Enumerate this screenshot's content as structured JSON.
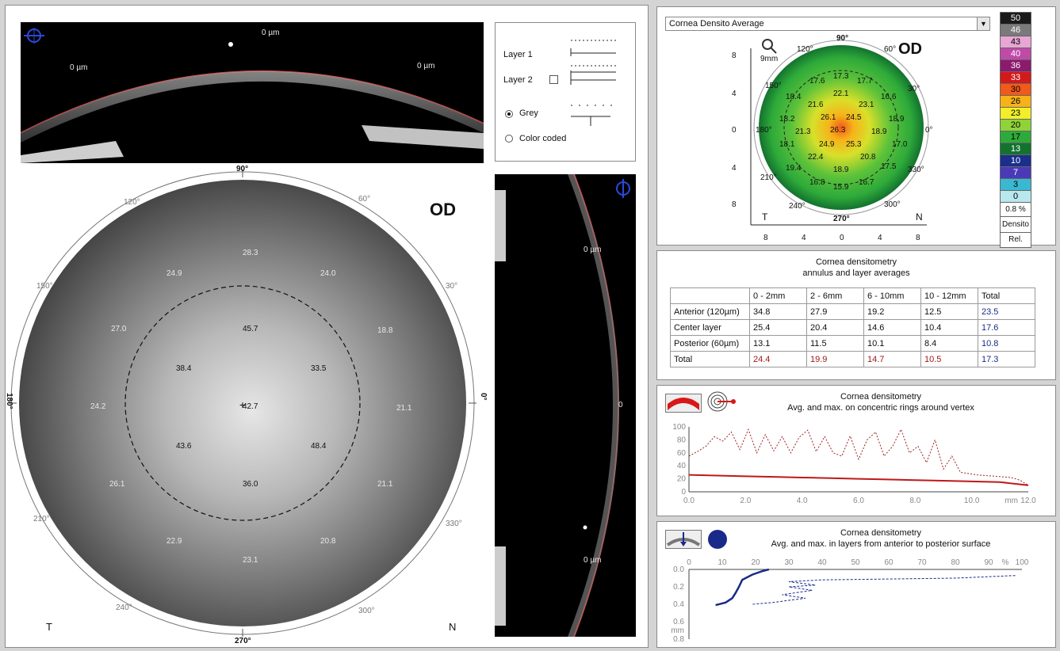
{
  "left": {
    "top_scan": {
      "labels": [
        "0 µm",
        "0 µm",
        "0 µm"
      ]
    },
    "layer_box": {
      "layer1": "Layer 1",
      "layer2": "Layer 2",
      "grey": "Grey",
      "color_coded": "Color coded",
      "grey_selected": true
    },
    "densito_map": {
      "eye": "OD",
      "angle_labels": [
        "90°",
        "60°",
        "30°",
        "0°",
        "330°",
        "300°",
        "270°",
        "240°",
        "210°",
        "180°",
        "150°",
        "120°"
      ],
      "values": {
        "outer_top": "28.3",
        "outer_tl": "24.9",
        "outer_tr": "24.0",
        "outer_l": "27.0",
        "outer_r": "18.8",
        "outer_ml": "24.2",
        "outer_mr": "21.1",
        "outer_bl1": "26.1",
        "outer_br1": "21.1",
        "outer_bl2": "22.9",
        "outer_br2": "20.8",
        "outer_bottom": "23.1",
        "inner_top": "45.7",
        "inner_tl": "38.4",
        "inner_tr": "33.5",
        "center": "42.7",
        "inner_bl": "43.6",
        "inner_br": "48.4",
        "inner_bottom": "36.0"
      },
      "t_label": "T",
      "n_label": "N"
    },
    "side_scan": {
      "labels": [
        "0 µm",
        "0",
        "0 µm"
      ]
    }
  },
  "right": {
    "map_panel": {
      "dropdown_value": "Cornea Densito Average",
      "eye": "OD",
      "zoom_label": "9mm",
      "angle_labels": [
        "90°",
        "60°",
        "30°",
        "0°",
        "330°",
        "300°",
        "270°",
        "240°",
        "210°",
        "180°",
        "150°",
        "120°"
      ],
      "axis_ticks_y": [
        "8",
        "4",
        "0",
        "4",
        "8"
      ],
      "axis_ticks_x": [
        "8",
        "4",
        "0",
        "4",
        "8"
      ],
      "t_label": "T",
      "n_label": "N",
      "map_values": [
        "17.3",
        "17.6",
        "17.7",
        "18.4",
        "22.1",
        "16.6",
        "21.6",
        "23.1",
        "18.2",
        "26.1",
        "24.5",
        "18.9",
        "21.3",
        "26.3",
        "18.9",
        "18.1",
        "24.9",
        "25.3",
        "17.0",
        "22.4",
        "20.8",
        "19.4",
        "17.5",
        "18.9",
        "16.8",
        "16.7",
        "15.9"
      ],
      "legend": [
        {
          "label": "50",
          "color": "#1a1a1a",
          "text": "#ffffff"
        },
        {
          "label": "46",
          "color": "#7a7a7a",
          "text": "#ffffff"
        },
        {
          "label": "43",
          "color": "#e7a6d3",
          "text": "#000000"
        },
        {
          "label": "40",
          "color": "#c04aa8",
          "text": "#ffffff"
        },
        {
          "label": "36",
          "color": "#8c1a6e",
          "text": "#ffffff"
        },
        {
          "label": "33",
          "color": "#d21a1a",
          "text": "#ffffff"
        },
        {
          "label": "30",
          "color": "#f05a1a",
          "text": "#000000"
        },
        {
          "label": "26",
          "color": "#f7b21a",
          "text": "#000000"
        },
        {
          "label": "23",
          "color": "#f2ee2a",
          "text": "#000000"
        },
        {
          "label": "20",
          "color": "#8fd23a",
          "text": "#000000"
        },
        {
          "label": "17",
          "color": "#2eaa3a",
          "text": "#000000"
        },
        {
          "label": "13",
          "color": "#13722e",
          "text": "#ffffff"
        },
        {
          "label": "10",
          "color": "#1a2e8a",
          "text": "#ffffff"
        },
        {
          "label": "7",
          "color": "#4a3ab8",
          "text": "#ffffff"
        },
        {
          "label": "3",
          "color": "#3ab8d2",
          "text": "#000000"
        },
        {
          "label": "0",
          "color": "#b8e8ee",
          "text": "#000000"
        }
      ],
      "legend_percent": "0.8 %",
      "legend_mode": "Densito",
      "legend_rel": "Rel."
    },
    "table_panel": {
      "title1": "Cornea densitometry",
      "title2": "annulus and layer averages",
      "headers": [
        "",
        "0 - 2mm",
        "2 - 6mm",
        "6 - 10mm",
        "10 - 12mm",
        "Total"
      ],
      "rows": [
        {
          "label": "Anterior (120µm)",
          "values": [
            "34.8",
            "27.9",
            "19.2",
            "12.5"
          ],
          "total": "23.5"
        },
        {
          "label": "Center layer",
          "values": [
            "25.4",
            "20.4",
            "14.6",
            "10.4"
          ],
          "total": "17.6"
        },
        {
          "label": "Posterior (60µm)",
          "values": [
            "13.1",
            "11.5",
            "10.1",
            "8.4"
          ],
          "total": "10.8"
        },
        {
          "label": "Total",
          "values": [
            "24.4",
            "19.9",
            "14.7",
            "10.5"
          ],
          "total": "17.3"
        }
      ]
    },
    "rings_panel": {
      "title1": "Cornea densitometry",
      "title2": "Avg. and max. on concentric rings around vertex",
      "y_ticks": [
        "100",
        "80",
        "60",
        "40",
        "20",
        "0"
      ],
      "x_ticks": [
        "0.0",
        "2.0",
        "4.0",
        "6.0",
        "8.0",
        "10.0",
        "12.0"
      ],
      "x_unit": "mm"
    },
    "layers_panel": {
      "title1": "Cornea densitometry",
      "title2": "Avg. and max. in layers from anterior to posterior surface",
      "x_ticks": [
        "0",
        "10",
        "20",
        "30",
        "40",
        "50",
        "60",
        "70",
        "80",
        "90",
        "100"
      ],
      "x_unit": "%",
      "y_ticks": [
        "0.0",
        "0.2",
        "0.4",
        "0.6",
        "0.8"
      ],
      "y_unit": "mm"
    }
  },
  "chart_data": [
    {
      "type": "line",
      "title": "Cornea densitometry",
      "subtitle": "Avg. and max. on concentric rings around vertex",
      "xlabel": "mm",
      "ylabel": "",
      "xlim": [
        0,
        12
      ],
      "ylim": [
        0,
        100
      ],
      "series": [
        {
          "name": "",
          "style": "dashed",
          "color": "#a02020",
          "x": [
            0.0,
            0.3,
            0.6,
            0.9,
            1.2,
            1.5,
            1.8,
            2.1,
            2.4,
            2.7,
            3.0,
            3.3,
            3.6,
            3.9,
            4.2,
            4.5,
            4.8,
            5.1,
            5.4,
            5.7,
            6.0,
            6.3,
            6.6,
            6.9,
            7.2,
            7.5,
            7.8,
            8.1,
            8.4,
            8.7,
            9.0,
            9.3,
            9.6,
            9.9,
            10.2,
            10.5,
            10.8,
            11.1,
            11.4,
            11.7,
            12.0
          ],
          "y": [
            55,
            62,
            70,
            85,
            78,
            92,
            65,
            96,
            60,
            88,
            63,
            85,
            60,
            84,
            95,
            62,
            85,
            60,
            55,
            86,
            50,
            80,
            92,
            55,
            70,
            96,
            60,
            70,
            45,
            80,
            35,
            55,
            30,
            28,
            26,
            25,
            24,
            23,
            22,
            18,
            10
          ]
        },
        {
          "name": "",
          "style": "solid",
          "color": "#c01818",
          "x": [
            0,
            1,
            2,
            3,
            4,
            5,
            6,
            7,
            8,
            9,
            10,
            11,
            12
          ],
          "y": [
            26,
            25,
            24,
            23,
            22,
            21,
            20,
            19,
            18,
            17,
            16,
            15,
            10
          ]
        }
      ]
    },
    {
      "type": "line",
      "title": "Cornea densitometry",
      "subtitle": "Avg. and max. in layers from anterior to posterior surface",
      "xlabel": "%",
      "ylabel": "mm",
      "xlim": [
        0,
        100
      ],
      "ylim": [
        0.8,
        0.0
      ],
      "series": [
        {
          "name": "",
          "style": "solid",
          "color": "#1a2a8a",
          "x": [
            24,
            22,
            19,
            16,
            15,
            14,
            13,
            11,
            8
          ],
          "y": [
            0.0,
            0.02,
            0.06,
            0.12,
            0.2,
            0.27,
            0.33,
            0.38,
            0.41
          ]
        },
        {
          "name": "",
          "style": "dashed",
          "color": "#1a2a8a",
          "x": [
            98,
            80,
            60,
            40,
            30,
            38,
            30,
            37,
            28,
            35,
            25,
            19
          ],
          "y": [
            0.07,
            0.1,
            0.11,
            0.12,
            0.14,
            0.18,
            0.2,
            0.24,
            0.29,
            0.33,
            0.38,
            0.4
          ]
        }
      ]
    }
  ]
}
